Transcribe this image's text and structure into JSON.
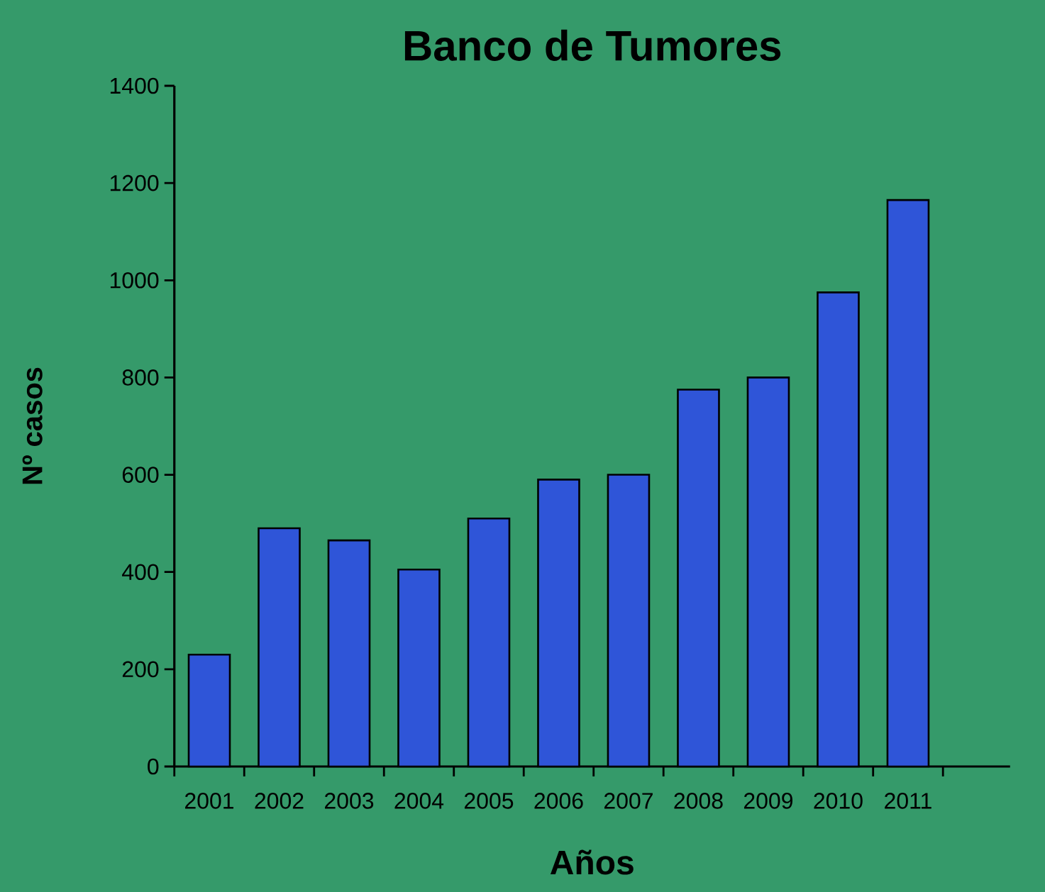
{
  "chart_data": {
    "type": "bar",
    "title": "Banco de Tumores",
    "xlabel": "Años",
    "ylabel": "Nº casos",
    "categories": [
      "2001",
      "2002",
      "2003",
      "2004",
      "2005",
      "2006",
      "2007",
      "2008",
      "2009",
      "2010",
      "2011"
    ],
    "values": [
      230,
      490,
      465,
      405,
      510,
      590,
      600,
      775,
      800,
      975,
      1165
    ],
    "color": "#2f55d8",
    "ylim": [
      0,
      1400
    ],
    "yticks": [
      0,
      200,
      400,
      600,
      800,
      1000,
      1200,
      1400
    ]
  }
}
